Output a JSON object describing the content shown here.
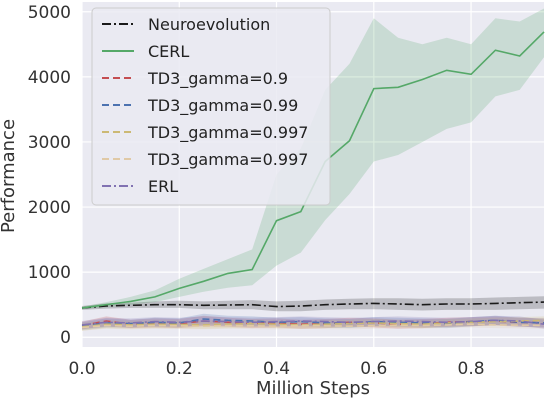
{
  "chart_data": {
    "type": "line",
    "title": "",
    "xlabel": "Million Steps",
    "ylabel": "Performance",
    "xlim": [
      0.0,
      0.95
    ],
    "ylim": [
      -150,
      5150
    ],
    "x_ticks": [
      0.0,
      0.2,
      0.4,
      0.6,
      0.8
    ],
    "x_tick_labels": [
      "0.0",
      "0.2",
      "0.4",
      "0.6",
      "0.8"
    ],
    "y_ticks": [
      0,
      1000,
      2000,
      3000,
      4000,
      5000
    ],
    "y_tick_labels": [
      "0",
      "1000",
      "2000",
      "3000",
      "4000",
      "5000"
    ],
    "grid": true,
    "background": "#eaeaf2",
    "legend_position": "top-left",
    "series": [
      {
        "name": "Neuroevolution",
        "color": "#1a1a1a",
        "dash": "dashdot",
        "x": [
          0.0,
          0.05,
          0.1,
          0.15,
          0.2,
          0.25,
          0.3,
          0.35,
          0.4,
          0.45,
          0.5,
          0.55,
          0.6,
          0.65,
          0.7,
          0.75,
          0.8,
          0.85,
          0.9,
          0.95
        ],
        "values": [
          450,
          480,
          490,
          500,
          500,
          490,
          495,
          500,
          470,
          480,
          500,
          510,
          520,
          510,
          500,
          510,
          510,
          520,
          530,
          540
        ],
        "lower": [
          420,
          440,
          450,
          450,
          450,
          430,
          430,
          430,
          400,
          400,
          420,
          430,
          430,
          420,
          410,
          420,
          420,
          420,
          430,
          440
        ],
        "upper": [
          480,
          520,
          530,
          550,
          560,
          550,
          560,
          570,
          550,
          560,
          580,
          590,
          600,
          600,
          590,
          600,
          600,
          610,
          620,
          630
        ]
      },
      {
        "name": "CERL",
        "color": "#55a868",
        "dash": "solid",
        "x": [
          0.0,
          0.05,
          0.1,
          0.15,
          0.2,
          0.25,
          0.3,
          0.35,
          0.4,
          0.45,
          0.5,
          0.55,
          0.6,
          0.65,
          0.7,
          0.75,
          0.8,
          0.85,
          0.9,
          0.95
        ],
        "values": [
          450,
          500,
          550,
          620,
          750,
          860,
          980,
          1040,
          1790,
          1930,
          2700,
          3020,
          3820,
          3840,
          3960,
          4100,
          4040,
          4410,
          4320,
          4690
        ],
        "lower": [
          430,
          460,
          500,
          540,
          620,
          700,
          760,
          800,
          1100,
          1300,
          1800,
          2200,
          2700,
          2800,
          3000,
          3200,
          3300,
          3700,
          3800,
          4300
        ],
        "upper": [
          470,
          540,
          620,
          720,
          900,
          1050,
          1200,
          1350,
          2500,
          2900,
          3800,
          4200,
          4900,
          4600,
          4500,
          4600,
          4500,
          4900,
          4850,
          5050
        ]
      },
      {
        "name": "TD3_gamma=0.9",
        "color": "#c44e52",
        "dash": "dashed",
        "x": [
          0.0,
          0.05,
          0.1,
          0.15,
          0.2,
          0.25,
          0.3,
          0.35,
          0.4,
          0.45,
          0.5,
          0.55,
          0.6,
          0.65,
          0.7,
          0.75,
          0.8,
          0.85,
          0.9,
          0.95
        ],
        "values": [
          180,
          250,
          200,
          220,
          210,
          250,
          230,
          210,
          220,
          200,
          210,
          230,
          220,
          200,
          210,
          230,
          240,
          250,
          230,
          220
        ],
        "lower": [
          120,
          170,
          140,
          150,
          140,
          170,
          160,
          140,
          150,
          130,
          140,
          160,
          150,
          130,
          140,
          160,
          170,
          180,
          160,
          150
        ],
        "upper": [
          240,
          320,
          270,
          290,
          280,
          330,
          300,
          280,
          290,
          270,
          280,
          300,
          290,
          270,
          280,
          300,
          310,
          320,
          300,
          290
        ]
      },
      {
        "name": "TD3_gamma=0.99",
        "color": "#4c72b0",
        "dash": "dashed",
        "x": [
          0.0,
          0.05,
          0.1,
          0.15,
          0.2,
          0.25,
          0.3,
          0.35,
          0.4,
          0.45,
          0.5,
          0.55,
          0.6,
          0.65,
          0.7,
          0.75,
          0.8,
          0.85,
          0.9,
          0.95
        ],
        "values": [
          170,
          220,
          210,
          230,
          220,
          280,
          260,
          250,
          230,
          240,
          220,
          210,
          240,
          230,
          220,
          210,
          240,
          260,
          230,
          220
        ],
        "lower": [
          110,
          150,
          150,
          160,
          150,
          200,
          190,
          180,
          160,
          170,
          150,
          140,
          170,
          160,
          150,
          140,
          170,
          190,
          160,
          150
        ],
        "upper": [
          230,
          290,
          270,
          300,
          290,
          360,
          330,
          320,
          300,
          310,
          290,
          280,
          310,
          300,
          290,
          280,
          310,
          330,
          300,
          290
        ]
      },
      {
        "name": "TD3_gamma=0.997",
        "color": "#ccb974",
        "dash": "dashed",
        "x": [
          0.0,
          0.05,
          0.1,
          0.15,
          0.2,
          0.25,
          0.3,
          0.35,
          0.4,
          0.45,
          0.5,
          0.55,
          0.6,
          0.65,
          0.7,
          0.75,
          0.8,
          0.85,
          0.9,
          0.95
        ],
        "values": [
          160,
          200,
          190,
          200,
          195,
          190,
          200,
          210,
          200,
          190,
          200,
          210,
          220,
          210,
          200,
          220,
          230,
          240,
          250,
          260
        ],
        "lower": [
          100,
          140,
          130,
          140,
          135,
          130,
          140,
          150,
          140,
          130,
          140,
          150,
          160,
          150,
          140,
          160,
          170,
          180,
          190,
          200
        ],
        "upper": [
          220,
          260,
          250,
          260,
          255,
          250,
          260,
          270,
          260,
          250,
          260,
          270,
          280,
          270,
          260,
          280,
          290,
          300,
          310,
          320
        ]
      },
      {
        "name": "TD3_gamma=0.997",
        "color": "#e0c9a6",
        "dash": "dashed",
        "x": [
          0.0,
          0.05,
          0.1,
          0.15,
          0.2,
          0.25,
          0.3,
          0.35,
          0.4,
          0.45,
          0.5,
          0.55,
          0.6,
          0.65,
          0.7,
          0.75,
          0.8,
          0.85,
          0.9,
          0.95
        ],
        "values": [
          150,
          180,
          170,
          180,
          175,
          170,
          180,
          175,
          170,
          180,
          175,
          170,
          180,
          185,
          180,
          190,
          200,
          190,
          185,
          180
        ],
        "lower": [
          100,
          130,
          120,
          130,
          125,
          120,
          130,
          125,
          120,
          130,
          125,
          120,
          130,
          135,
          130,
          140,
          150,
          140,
          135,
          130
        ],
        "upper": [
          200,
          230,
          220,
          230,
          225,
          220,
          230,
          225,
          220,
          230,
          225,
          220,
          230,
          235,
          230,
          240,
          250,
          240,
          235,
          230
        ]
      },
      {
        "name": "ERL",
        "color": "#8172b2",
        "dash": "dashdot",
        "x": [
          0.0,
          0.05,
          0.1,
          0.15,
          0.2,
          0.25,
          0.3,
          0.35,
          0.4,
          0.45,
          0.5,
          0.55,
          0.6,
          0.65,
          0.7,
          0.75,
          0.8,
          0.85,
          0.9,
          0.95
        ],
        "values": [
          190,
          230,
          220,
          240,
          230,
          250,
          240,
          230,
          240,
          250,
          240,
          230,
          240,
          250,
          240,
          230,
          240,
          260,
          250,
          200
        ],
        "lower": [
          130,
          160,
          150,
          170,
          160,
          180,
          170,
          160,
          170,
          180,
          170,
          160,
          170,
          180,
          170,
          160,
          170,
          190,
          180,
          130
        ],
        "upper": [
          250,
          300,
          290,
          310,
          300,
          320,
          310,
          300,
          310,
          320,
          310,
          300,
          310,
          320,
          310,
          300,
          310,
          330,
          320,
          270
        ]
      }
    ]
  }
}
